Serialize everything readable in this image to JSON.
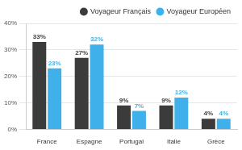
{
  "chart_data": {
    "type": "bar",
    "categories": [
      "France",
      "Espagne",
      "Portugal",
      "Italie",
      "Grèce"
    ],
    "series": [
      {
        "name": "Voyageur Français",
        "color": "#3b3b3b",
        "values": [
          33,
          27,
          9,
          9,
          4
        ],
        "value_labels": [
          "33%",
          "27%",
          "9%",
          "9%",
          "4%"
        ]
      },
      {
        "name": "Voyageur Européen",
        "color": "#3fb0ea",
        "values": [
          23,
          32,
          7,
          12,
          4
        ],
        "value_labels": [
          "23%",
          "32%",
          "7%",
          "12%",
          "4%"
        ]
      }
    ],
    "ylim": [
      0,
      40
    ],
    "yticks": [
      {
        "value": 0,
        "label": "0%"
      },
      {
        "value": 10,
        "label": "10%"
      },
      {
        "value": 20,
        "label": "20%"
      },
      {
        "value": 30,
        "label": "30%"
      },
      {
        "value": 40,
        "label": "40%"
      }
    ],
    "grid": true,
    "legend": "top-right",
    "data_labels": true
  }
}
